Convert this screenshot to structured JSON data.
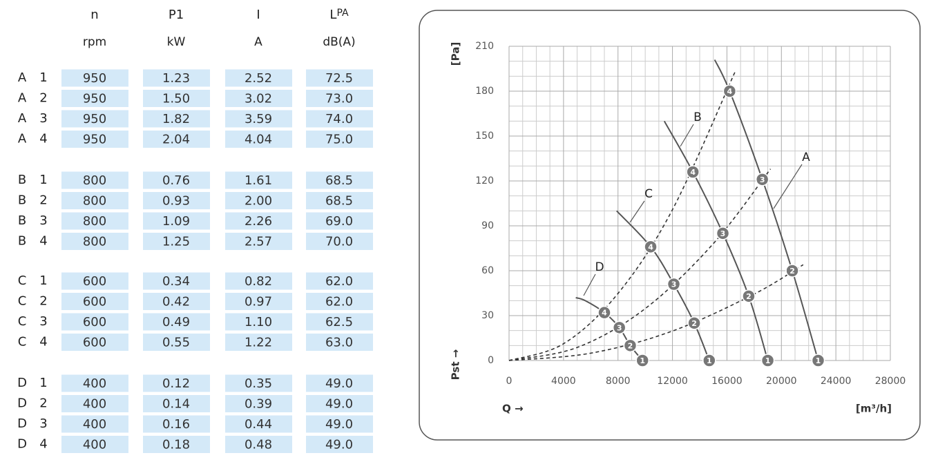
{
  "table": {
    "headers": [
      "n",
      "P1",
      "I",
      "L"
    ],
    "header_sub": [
      "",
      "",
      "",
      "PA"
    ],
    "units": [
      "rpm",
      "kW",
      "A",
      "dB(A)"
    ],
    "groups": [
      {
        "label": "A",
        "rows": [
          [
            "1",
            "950",
            "1.23",
            "2.52",
            "72.5"
          ],
          [
            "2",
            "950",
            "1.50",
            "3.02",
            "73.0"
          ],
          [
            "3",
            "950",
            "1.82",
            "3.59",
            "74.0"
          ],
          [
            "4",
            "950",
            "2.04",
            "4.04",
            "75.0"
          ]
        ]
      },
      {
        "label": "B",
        "rows": [
          [
            "1",
            "800",
            "0.76",
            "1.61",
            "68.5"
          ],
          [
            "2",
            "800",
            "0.93",
            "2.00",
            "68.5"
          ],
          [
            "3",
            "800",
            "1.09",
            "2.26",
            "69.0"
          ],
          [
            "4",
            "800",
            "1.25",
            "2.57",
            "70.0"
          ]
        ]
      },
      {
        "label": "C",
        "rows": [
          [
            "1",
            "600",
            "0.34",
            "0.82",
            "62.0"
          ],
          [
            "2",
            "600",
            "0.42",
            "0.97",
            "62.0"
          ],
          [
            "3",
            "600",
            "0.49",
            "1.10",
            "62.5"
          ],
          [
            "4",
            "600",
            "0.55",
            "1.22",
            "63.0"
          ]
        ]
      },
      {
        "label": "D",
        "rows": [
          [
            "1",
            "400",
            "0.12",
            "0.35",
            "49.0"
          ],
          [
            "2",
            "400",
            "0.14",
            "0.39",
            "49.0"
          ],
          [
            "3",
            "400",
            "0.16",
            "0.44",
            "49.0"
          ],
          [
            "4",
            "400",
            "0.18",
            "0.48",
            "49.0"
          ]
        ]
      }
    ]
  },
  "chart_data": {
    "type": "line",
    "y_label": "[Pa]",
    "y_name": "Pst →",
    "x_name": "Q →",
    "x_label": "[m³/h]",
    "xlim": [
      0,
      28000
    ],
    "xticks": [
      0,
      4000,
      8000,
      12000,
      16000,
      20000,
      24000,
      28000
    ],
    "ylim": [
      0,
      210
    ],
    "yticks": [
      0,
      30,
      60,
      90,
      120,
      150,
      180,
      210
    ],
    "grid": true,
    "series": [
      {
        "name": "A",
        "color": "#555555",
        "x": [
          15100,
          16200,
          18600,
          20800,
          22700
        ],
        "values": [
          201,
          180,
          121,
          60,
          0
        ],
        "points": {
          "labels": [
            "1",
            "2",
            "3",
            "4"
          ],
          "x": [
            22700,
            20800,
            18600,
            16200
          ],
          "y": [
            0,
            60,
            121,
            180
          ]
        }
      },
      {
        "name": "B",
        "color": "#555555",
        "x": [
          11400,
          13500,
          15700,
          17600,
          19000
        ],
        "values": [
          160,
          126,
          85,
          43,
          0
        ],
        "points": {
          "labels": [
            "1",
            "2",
            "3",
            "4"
          ],
          "x": [
            19000,
            17600,
            15700,
            13500
          ],
          "y": [
            0,
            43,
            85,
            126
          ]
        }
      },
      {
        "name": "C",
        "color": "#555555",
        "x": [
          7900,
          10400,
          12100,
          13600,
          14700
        ],
        "values": [
          100,
          76,
          51,
          25,
          0
        ],
        "points": {
          "labels": [
            "1",
            "2",
            "3",
            "4"
          ],
          "x": [
            14700,
            13600,
            12100,
            10400
          ],
          "y": [
            0,
            25,
            51,
            76
          ]
        }
      },
      {
        "name": "D",
        "color": "#555555",
        "x": [
          4900,
          5600,
          7000,
          8100,
          8900,
          9800
        ],
        "values": [
          42,
          40,
          32,
          22,
          10,
          0
        ],
        "points": {
          "labels": [
            "1",
            "2",
            "3",
            "4"
          ],
          "x": [
            9800,
            8900,
            8100,
            7000
          ],
          "y": [
            0,
            10,
            22,
            32
          ]
        }
      },
      {
        "color": "#333333",
        "style": "dashed",
        "x": [
          0,
          4000,
          8000,
          12000,
          16600
        ],
        "values": [
          0,
          11.2,
          44.8,
          100.8,
          193
        ]
      },
      {
        "color": "#333333",
        "style": "dashed",
        "x": [
          0,
          5000,
          10000,
          15000,
          19200
        ],
        "values": [
          0,
          8.7,
          34.7,
          78.1,
          128
        ]
      },
      {
        "color": "#333333",
        "style": "dashed",
        "x": [
          0,
          6000,
          12000,
          18000,
          21600
        ],
        "values": [
          0,
          4.9,
          19.7,
          44.4,
          64
        ]
      }
    ]
  }
}
